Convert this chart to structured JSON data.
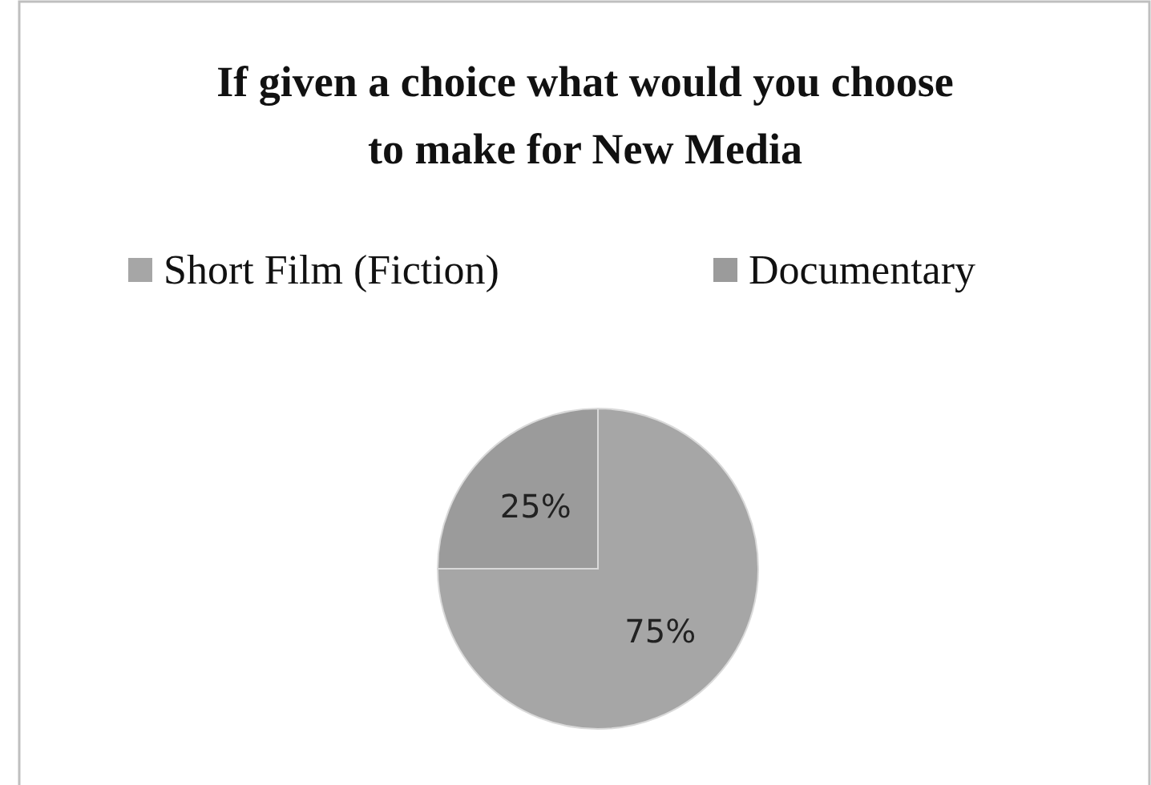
{
  "chart_data": {
    "type": "pie",
    "title": "If given a choice what would you choose to make for New Media",
    "categories": [
      "Short Film (Fiction)",
      "Documentary"
    ],
    "values": [
      75,
      25
    ],
    "colors": [
      "#a6a6a6",
      "#9b9b9b"
    ],
    "value_labels": [
      "75%",
      "25%"
    ],
    "legend": "top"
  }
}
